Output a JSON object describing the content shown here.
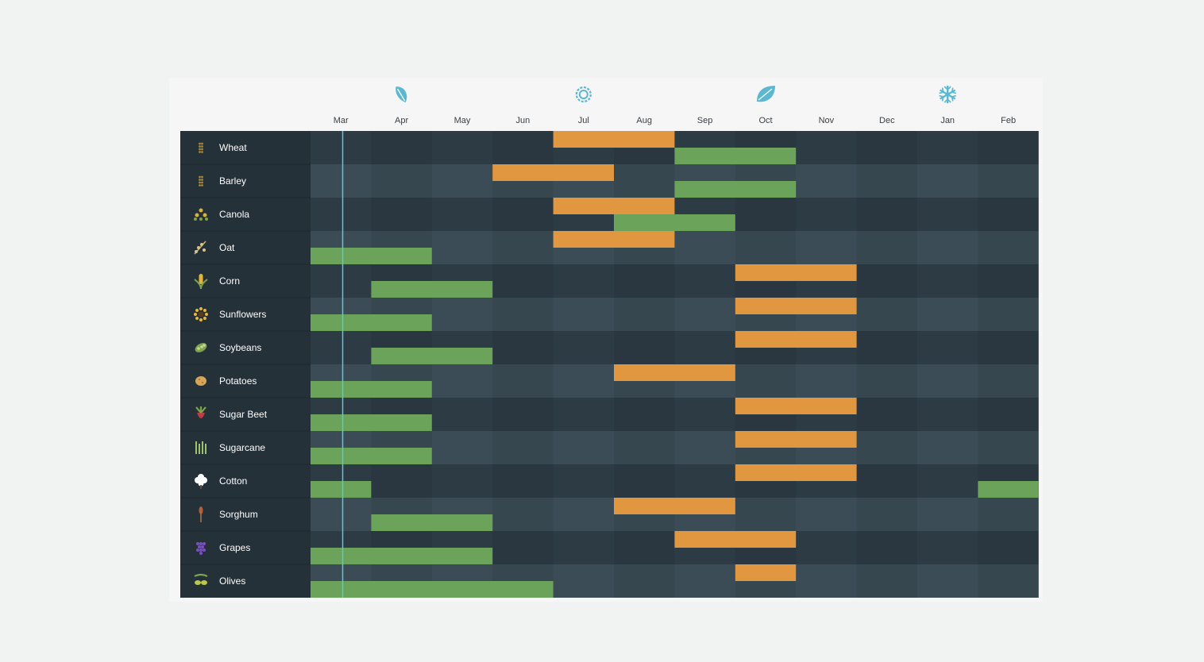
{
  "chart_data": {
    "type": "gantt",
    "months": [
      "Mar",
      "Apr",
      "May",
      "Jun",
      "Jul",
      "Aug",
      "Sep",
      "Oct",
      "Nov",
      "Dec",
      "Jan",
      "Feb"
    ],
    "season_icons": [
      {
        "icon": "leaf-icon",
        "month": "Apr"
      },
      {
        "icon": "sun-icon",
        "month": "Jul"
      },
      {
        "icon": "autumn-leaf-icon",
        "month": "Oct"
      },
      {
        "icon": "snowflake-icon",
        "month": "Jan"
      }
    ],
    "current_month_marker": "Mar",
    "legend": [],
    "crops": [
      {
        "name": "Wheat",
        "icon": "wheat-icon",
        "orange": [
          "Jul",
          "Aug"
        ],
        "green": [
          "Sep",
          "Oct"
        ]
      },
      {
        "name": "Barley",
        "icon": "barley-icon",
        "orange": [
          "Jun",
          "Jul"
        ],
        "green": [
          "Sep",
          "Oct"
        ]
      },
      {
        "name": "Canola",
        "icon": "canola-icon",
        "orange": [
          "Jul",
          "Aug"
        ],
        "green": [
          "Aug",
          "Sep"
        ]
      },
      {
        "name": "Oat",
        "icon": "oat-icon",
        "orange": [
          "Jul",
          "Aug"
        ],
        "green": [
          "Mar",
          "Apr"
        ]
      },
      {
        "name": "Corn",
        "icon": "corn-icon",
        "orange": [
          "Oct",
          "Nov"
        ],
        "green": [
          "Apr",
          "May"
        ]
      },
      {
        "name": "Sunflowers",
        "icon": "sunflower-icon",
        "orange": [
          "Oct",
          "Nov"
        ],
        "green": [
          "Mar",
          "Apr"
        ]
      },
      {
        "name": "Soybeans",
        "icon": "soybean-icon",
        "orange": [
          "Oct",
          "Nov"
        ],
        "green": [
          "Apr",
          "May"
        ]
      },
      {
        "name": "Potatoes",
        "icon": "potato-icon",
        "orange": [
          "Aug",
          "Sep"
        ],
        "green": [
          "Mar",
          "Apr"
        ]
      },
      {
        "name": "Sugar Beet",
        "icon": "sugar-beet-icon",
        "orange": [
          "Oct",
          "Nov"
        ],
        "green": [
          "Mar",
          "Apr"
        ]
      },
      {
        "name": "Sugarcane",
        "icon": "sugarcane-icon",
        "orange": [
          "Oct",
          "Nov"
        ],
        "green": [
          "Mar",
          "Apr"
        ]
      },
      {
        "name": "Cotton",
        "icon": "cotton-icon",
        "orange": [
          "Oct",
          "Nov"
        ],
        "green": [
          "Mar",
          "Mar"
        ],
        "green2": [
          "Feb",
          "Feb"
        ]
      },
      {
        "name": "Sorghum",
        "icon": "sorghum-icon",
        "orange": [
          "Aug",
          "Sep"
        ],
        "green": [
          "Apr",
          "May"
        ]
      },
      {
        "name": "Grapes",
        "icon": "grapes-icon",
        "orange": [
          "Sep",
          "Oct"
        ],
        "green": [
          "Mar",
          "May"
        ]
      },
      {
        "name": "Olives",
        "icon": "olives-icon",
        "orange": [
          "Oct",
          "Oct"
        ],
        "green": [
          "Mar",
          "Jun"
        ]
      }
    ],
    "colors": {
      "orange": "#e0973f",
      "green": "#6ba35a",
      "row_dark": "#2d3b45",
      "row_light": "#3b4c56",
      "label_bg": "#253139",
      "marker": "#5cc7d6",
      "icon": "#5cb8d0"
    }
  }
}
